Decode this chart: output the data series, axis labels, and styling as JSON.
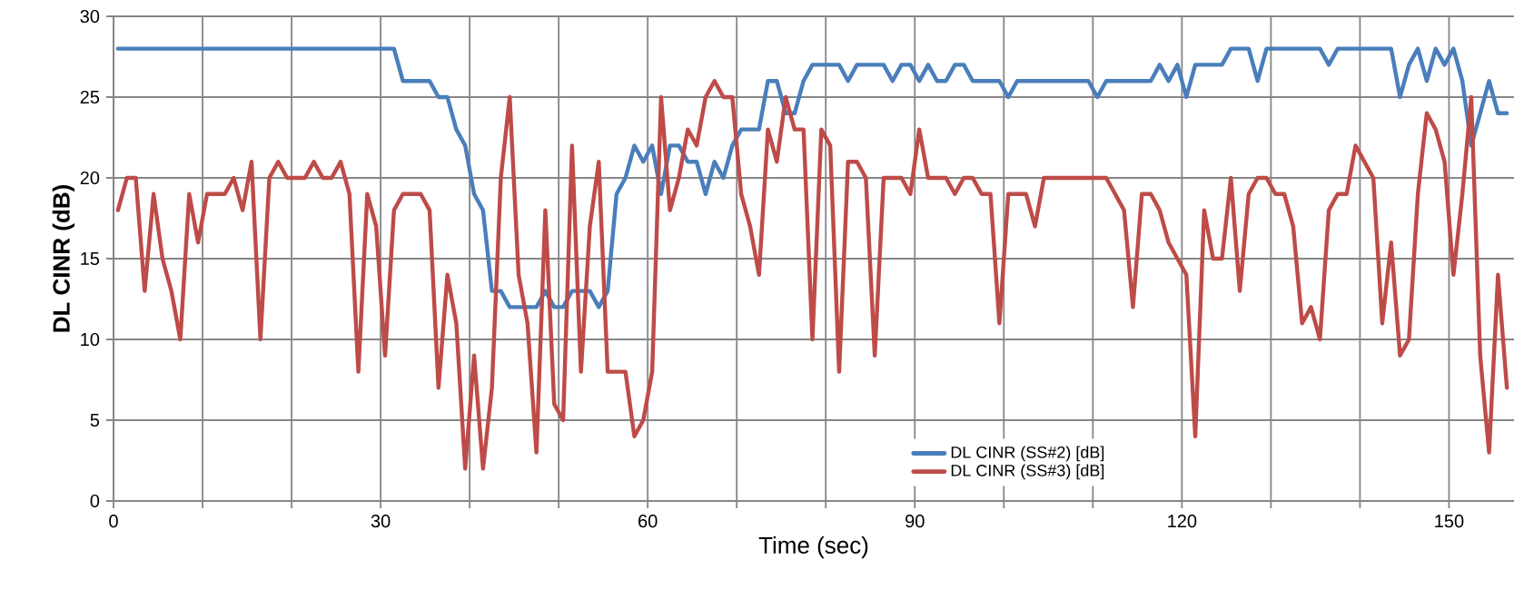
{
  "chart_data": {
    "type": "line",
    "xlabel": "Time (sec)",
    "ylabel": "DL CINR (dB)",
    "x": [
      0.5,
      1.5,
      2.5,
      3.5,
      4.5,
      5.5,
      6.5,
      7.5,
      8.5,
      9.5,
      10.5,
      11.5,
      12.5,
      13.5,
      14.5,
      15.5,
      16.5,
      17.5,
      18.5,
      19.5,
      20.5,
      21.5,
      22.5,
      23.5,
      24.5,
      25.5,
      26.5,
      27.5,
      28.5,
      29.5,
      30.5,
      31.5,
      32.5,
      33.5,
      34.5,
      35.5,
      36.5,
      37.5,
      38.5,
      39.5,
      40.5,
      41.5,
      42.5,
      43.5,
      44.5,
      45.5,
      46.5,
      47.5,
      48.5,
      49.5,
      50.5,
      51.5,
      52.5,
      53.5,
      54.5,
      55.5,
      56.5,
      57.5,
      58.5,
      59.5,
      60.5,
      61.5,
      62.5,
      63.5,
      64.5,
      65.5,
      66.5,
      67.5,
      68.5,
      69.5,
      70.5,
      71.5,
      72.5,
      73.5,
      74.5,
      75.5,
      76.5,
      77.5,
      78.5,
      79.5,
      80.5,
      81.5,
      82.5,
      83.5,
      84.5,
      85.5,
      86.5,
      87.5,
      88.5,
      89.5,
      90.5,
      91.5,
      92.5,
      93.5,
      94.5,
      95.5,
      96.5,
      97.5,
      98.5,
      99.5,
      100.5,
      101.5,
      102.5,
      103.5,
      104.5,
      105.5,
      106.5,
      107.5,
      108.5,
      109.5,
      110.5,
      111.5,
      112.5,
      113.5,
      114.5,
      115.5,
      116.5,
      117.5,
      118.5,
      119.5,
      120.5,
      121.5,
      122.5,
      123.5,
      124.5,
      125.5,
      126.5,
      127.5,
      128.5,
      129.5,
      130.5,
      131.5,
      132.5,
      133.5,
      134.5,
      135.5,
      136.5,
      137.5,
      138.5,
      139.5,
      140.5,
      141.5,
      142.5,
      143.5,
      144.5,
      145.5,
      146.5,
      147.5,
      148.5,
      149.5,
      150.5,
      151.5,
      152.5,
      153.5,
      154.5,
      155.5,
      156.5
    ],
    "series": [
      {
        "name": "DL CINR (SS#2) [dB]",
        "color": "#4a7ebb",
        "values": [
          28,
          28,
          28,
          28,
          28,
          28,
          28,
          28,
          28,
          28,
          28,
          28,
          28,
          28,
          28,
          28,
          28,
          28,
          28,
          28,
          28,
          28,
          28,
          28,
          28,
          28,
          28,
          28,
          28,
          28,
          28,
          28,
          26,
          26,
          26,
          26,
          25,
          25,
          23,
          22,
          19,
          18,
          13,
          13,
          12,
          12,
          12,
          12,
          13,
          12,
          12,
          13,
          13,
          13,
          12,
          13,
          19,
          20,
          22,
          21,
          22,
          19,
          22,
          22,
          21,
          21,
          19,
          21,
          20,
          22,
          23,
          23,
          23,
          26,
          26,
          24,
          24,
          26,
          27,
          27,
          27,
          27,
          26,
          27,
          27,
          27,
          27,
          26,
          27,
          27,
          26,
          27,
          26,
          26,
          27,
          27,
          26,
          26,
          26,
          26,
          25,
          26,
          26,
          26,
          26,
          26,
          26,
          26,
          26,
          26,
          25,
          26,
          26,
          26,
          26,
          26,
          26,
          27,
          26,
          27,
          25,
          27,
          27,
          27,
          27,
          28,
          28,
          28,
          26,
          28,
          28,
          28,
          28,
          28,
          28,
          28,
          27,
          28,
          28,
          28,
          28,
          28,
          28,
          28,
          25,
          27,
          28,
          26,
          28,
          27,
          28,
          26,
          22,
          24,
          26,
          24,
          24
        ]
      },
      {
        "name": "DL CINR (SS#3) [dB]",
        "color": "#be4b48",
        "values": [
          18,
          20,
          20,
          13,
          19,
          15,
          13,
          10,
          19,
          16,
          19,
          19,
          19,
          20,
          18,
          21,
          10,
          20,
          21,
          20,
          20,
          20,
          21,
          20,
          20,
          21,
          19,
          8,
          19,
          17,
          9,
          18,
          19,
          19,
          19,
          18,
          7,
          14,
          11,
          2,
          9,
          2,
          7,
          20,
          25,
          14,
          11,
          3,
          18,
          6,
          5,
          22,
          8,
          17,
          21,
          8,
          8,
          8,
          4,
          5,
          8,
          25,
          18,
          20,
          23,
          22,
          25,
          26,
          25,
          25,
          19,
          17,
          14,
          23,
          21,
          25,
          23,
          23,
          10,
          23,
          22,
          8,
          21,
          21,
          20,
          9,
          20,
          20,
          20,
          19,
          23,
          20,
          20,
          20,
          19,
          20,
          20,
          19,
          19,
          11,
          19,
          19,
          19,
          17,
          20,
          20,
          20,
          20,
          20,
          20,
          20,
          20,
          19,
          18,
          12,
          19,
          19,
          18,
          16,
          15,
          14,
          4,
          18,
          15,
          15,
          20,
          13,
          19,
          20,
          20,
          19,
          19,
          17,
          11,
          12,
          10,
          18,
          19,
          19,
          22,
          21,
          20,
          11,
          16,
          9,
          10,
          19,
          24,
          23,
          21,
          14,
          19,
          25,
          9,
          3,
          14,
          7
        ]
      }
    ],
    "xlim": [
      0,
      157.3
    ],
    "ylim": [
      0,
      30
    ],
    "xticks": [
      0,
      {
        "value": 10,
        "label": null
      },
      {
        "value": 20,
        "label": null
      },
      30,
      {
        "value": 40,
        "label": null
      },
      {
        "value": 50,
        "label": null
      },
      60,
      {
        "value": 70,
        "label": null
      },
      {
        "value": 80,
        "label": null
      },
      90,
      {
        "value": 100,
        "label": null
      },
      {
        "value": 110,
        "label": null
      },
      120,
      {
        "value": 130,
        "label": null
      },
      {
        "value": 140,
        "label": null
      },
      150
    ],
    "yticks": [
      0,
      5,
      10,
      15,
      20,
      25,
      30
    ],
    "grid": true,
    "legend": "bottom"
  }
}
